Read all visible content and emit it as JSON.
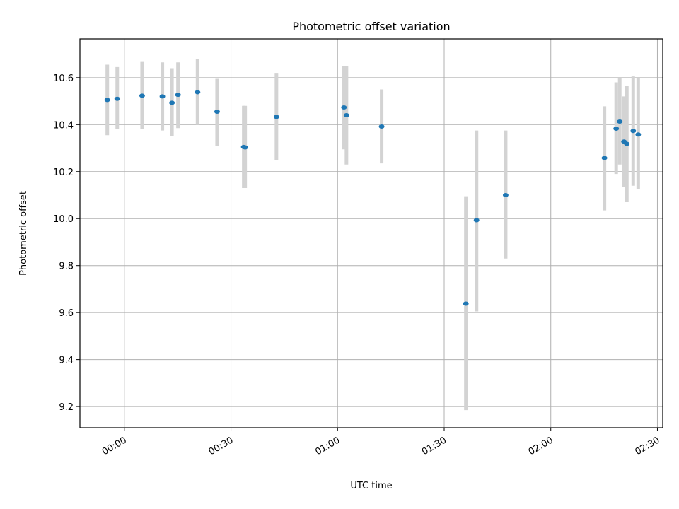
{
  "chart_data": {
    "type": "scatter",
    "title": "Photometric offset variation",
    "xlabel": "UTC time",
    "ylabel": "Photometric offset",
    "xlim": [
      "-00:12.5",
      "02:31.5"
    ],
    "ylim": [
      9.11,
      10.765
    ],
    "grid": true,
    "x_ticks": [
      "00:00",
      "00:30",
      "01:00",
      "01:30",
      "02:00",
      "02:30"
    ],
    "x_tick_minutes": [
      0,
      30,
      60,
      90,
      120,
      150
    ],
    "y_ticks": [
      "9.2",
      "9.4",
      "9.6",
      "9.8",
      "10.0",
      "10.2",
      "10.4",
      "10.6"
    ],
    "y_tick_values": [
      9.2,
      9.4,
      9.6,
      9.8,
      10.0,
      10.2,
      10.4,
      10.6
    ],
    "series": [
      {
        "marker_color": "#1f77b4",
        "errorbar_color": "#d3d3d3",
        "points": [
          {
            "t": "-00:04.8",
            "y": 10.505,
            "lo": 10.355,
            "hi": 10.655
          },
          {
            "t": "-00:02.0",
            "y": 10.51,
            "lo": 10.38,
            "hi": 10.645
          },
          {
            "t": "00:05.0",
            "y": 10.523,
            "lo": 10.38,
            "hi": 10.67
          },
          {
            "t": "00:10.7",
            "y": 10.52,
            "lo": 10.375,
            "hi": 10.665
          },
          {
            "t": "00:13.4",
            "y": 10.493,
            "lo": 10.35,
            "hi": 10.64
          },
          {
            "t": "00:15.1",
            "y": 10.527,
            "lo": 10.385,
            "hi": 10.665
          },
          {
            "t": "00:20.6",
            "y": 10.538,
            "lo": 10.4,
            "hi": 10.68
          },
          {
            "t": "00:26.1",
            "y": 10.455,
            "lo": 10.31,
            "hi": 10.595
          },
          {
            "t": "00:33.6",
            "y": 10.305,
            "lo": 10.13,
            "hi": 10.48
          },
          {
            "t": "00:34.0",
            "y": 10.303,
            "lo": 10.13,
            "hi": 10.48
          },
          {
            "t": "00:42.8",
            "y": 10.433,
            "lo": 10.25,
            "hi": 10.62
          },
          {
            "t": "01:01.8",
            "y": 10.473,
            "lo": 10.295,
            "hi": 10.65
          },
          {
            "t": "01:02.5",
            "y": 10.44,
            "lo": 10.23,
            "hi": 10.65
          },
          {
            "t": "01:12.4",
            "y": 10.392,
            "lo": 10.235,
            "hi": 10.55
          },
          {
            "t": "01:36.1",
            "y": 9.638,
            "lo": 9.185,
            "hi": 10.095
          },
          {
            "t": "01:39.1",
            "y": 9.993,
            "lo": 9.605,
            "hi": 10.375
          },
          {
            "t": "01:47.3",
            "y": 10.1,
            "lo": 9.83,
            "hi": 10.375
          },
          {
            "t": "02:15.1",
            "y": 10.258,
            "lo": 10.035,
            "hi": 10.478
          },
          {
            "t": "02:18.4",
            "y": 10.383,
            "lo": 10.19,
            "hi": 10.58
          },
          {
            "t": "02:19.4",
            "y": 10.413,
            "lo": 10.23,
            "hi": 10.598
          },
          {
            "t": "02:20.6",
            "y": 10.328,
            "lo": 10.135,
            "hi": 10.52
          },
          {
            "t": "02:21.4",
            "y": 10.318,
            "lo": 10.07,
            "hi": 10.565
          },
          {
            "t": "02:23.2",
            "y": 10.373,
            "lo": 10.14,
            "hi": 10.605
          },
          {
            "t": "02:24.6",
            "y": 10.358,
            "lo": 10.125,
            "hi": 10.598
          }
        ]
      }
    ]
  }
}
